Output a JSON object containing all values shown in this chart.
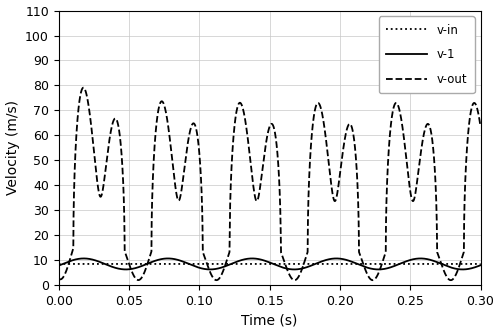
{
  "title": "",
  "xlabel": "Time (s)",
  "ylabel": "Velocity (m/s)",
  "xlim": [
    0,
    0.3
  ],
  "ylim": [
    0,
    110
  ],
  "xticks": [
    0,
    0.05,
    0.1,
    0.15,
    0.2,
    0.25,
    0.3
  ],
  "yticks": [
    0,
    10,
    20,
    30,
    40,
    50,
    60,
    70,
    80,
    90,
    100,
    110
  ],
  "v_in_value": 8.5,
  "v1_mean": 8.5,
  "v1_amp": 2.2,
  "v1_freq": 16.7,
  "vout_freq1": 16.7,
  "vout_freq2": 33.4,
  "legend_labels": [
    "v-in",
    "v-1",
    "v-out"
  ],
  "line_color": "#000000",
  "background_color": "#ffffff",
  "grid_color": "#c8c8c8"
}
